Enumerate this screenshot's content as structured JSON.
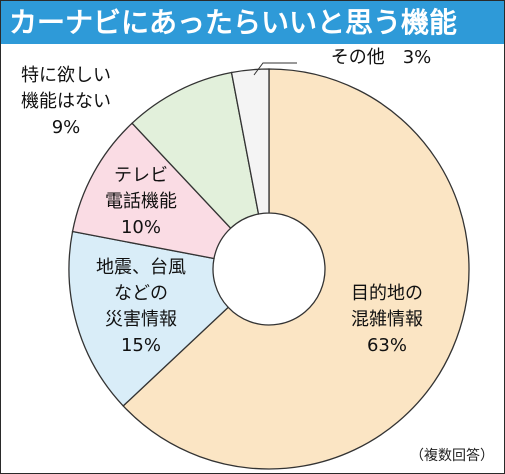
{
  "title": "カーナビにあったらいいと思う機能",
  "note": "（複数回答）",
  "colors": {
    "title_bg": "#2e9ad8",
    "title_text": "#ffffff",
    "slice_stroke": "#333333"
  },
  "chart_data": {
    "type": "pie",
    "subtype": "donut",
    "title": "カーナビにあったらいいと思う機能",
    "start": "12 o'clock, clockwise",
    "slices": [
      {
        "lines": [
          "目的地の",
          "混雑情報"
        ],
        "pct_label": "63%",
        "value": 63,
        "color": "#fbe5c4"
      },
      {
        "lines": [
          "地震、台風",
          "などの",
          "災害情報"
        ],
        "pct_label": "15%",
        "value": 15,
        "color": "#d9edf8"
      },
      {
        "lines": [
          "テレビ",
          "電話機能"
        ],
        "pct_label": "10%",
        "value": 10,
        "color": "#fadce4"
      },
      {
        "lines": [
          "特に欲しい",
          "機能はない"
        ],
        "pct_label": "9%",
        "value": 9,
        "color": "#e2f0db"
      },
      {
        "lines": [
          "その他"
        ],
        "pct_label": "3%",
        "value": 3,
        "color": "#f4f4f4"
      }
    ]
  }
}
